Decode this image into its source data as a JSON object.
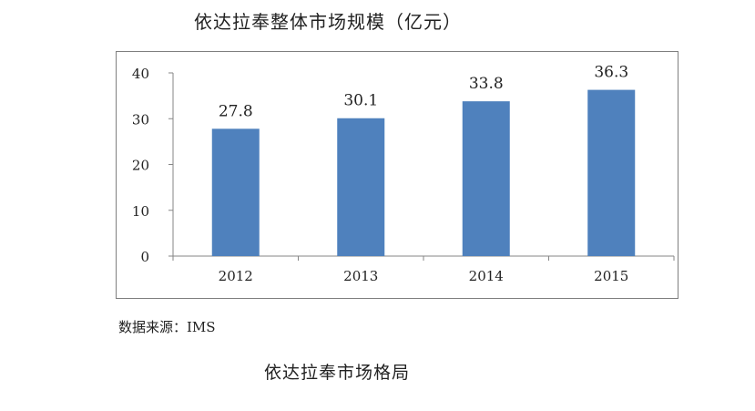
{
  "title": "依达拉奉整体市场规模（亿元）",
  "source": "数据来源：IMS",
  "caption": "依达拉奉市场格局",
  "colors": {
    "bar": "#4f81bd",
    "axis": "#868686",
    "frame": "#7f7f7f"
  },
  "chart_data": {
    "type": "bar",
    "title": "依达拉奉整体市场规模（亿元）",
    "categories": [
      "2012",
      "2013",
      "2014",
      "2015"
    ],
    "values": [
      27.8,
      30.1,
      33.8,
      36.3
    ],
    "data_labels": [
      "27.8",
      "30.1",
      "33.8",
      "36.3"
    ],
    "ylim": [
      0,
      40
    ],
    "yticks": [
      0,
      10,
      20,
      30,
      40
    ],
    "xlabel": "",
    "ylabel": "",
    "grid": false,
    "legend": "none"
  }
}
